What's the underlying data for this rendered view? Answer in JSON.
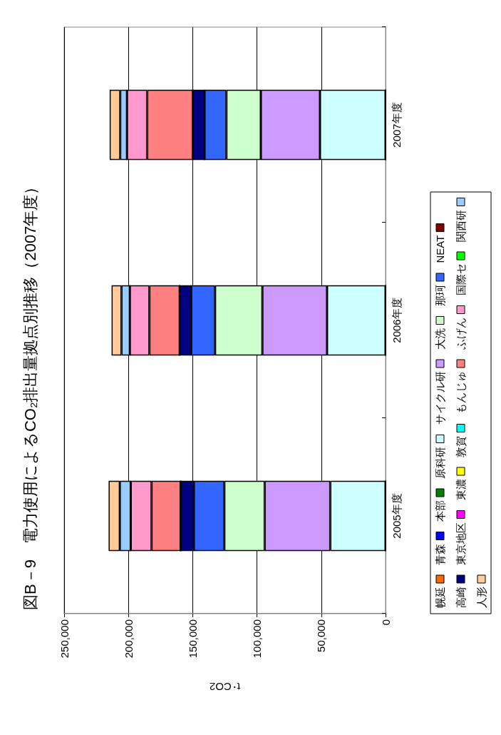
{
  "chart_data": {
    "type": "bar",
    "stacked": true,
    "title": "図B－9　電力使用によるCO₂排出量拠点別推移（2007年度）",
    "orientation": "horizontal",
    "xlabel": "t･CO2",
    "categories": [
      "2007年度",
      "2006年度",
      "2005年度"
    ],
    "xlim": [
      250000,
      0
    ],
    "xticks": [
      {
        "value": 250000,
        "label": "250,000"
      },
      {
        "value": 200000,
        "label": "200,000"
      },
      {
        "value": 150000,
        "label": "150,000"
      },
      {
        "value": 100000,
        "label": "100,000"
      },
      {
        "value": 50000,
        "label": "50,000"
      },
      0
    ],
    "grid": "x",
    "legend": "right",
    "series": [
      {
        "name": "幌延",
        "color": "#ff6600",
        "values": [
          0,
          0,
          0
        ]
      },
      {
        "name": "青森",
        "color": "#0000ff",
        "values": [
          0,
          0,
          0
        ]
      },
      {
        "name": "本部",
        "color": "#008000",
        "values": [
          0,
          0,
          0
        ]
      },
      {
        "name": "原科研",
        "color": "#ccffff",
        "values": [
          51000,
          45500,
          43000
        ]
      },
      {
        "name": "サイクル研",
        "color": "#cc99ff",
        "values": [
          46000,
          50300,
          51000
        ]
      },
      {
        "name": "大洗",
        "color": "#ccffcc",
        "values": [
          26800,
          36800,
          31400
        ]
      },
      {
        "name": "那珂",
        "color": "#3366ff",
        "values": [
          17000,
          18600,
          23700
        ]
      },
      {
        "name": "NEAT",
        "color": "#800000",
        "values": [
          0,
          0,
          0
        ]
      },
      {
        "name": "高崎",
        "color": "#000080",
        "values": [
          9100,
          8900,
          10300
        ]
      },
      {
        "name": "東京地区",
        "color": "#ff00ff",
        "values": [
          0,
          0,
          0
        ]
      },
      {
        "name": "東濃",
        "color": "#ffff00",
        "values": [
          0,
          0,
          0
        ]
      },
      {
        "name": "敦賀",
        "color": "#00ffff",
        "values": [
          0,
          0,
          0
        ]
      },
      {
        "name": "もんじゅ",
        "color": "#ff8080",
        "values": [
          35500,
          23600,
          22600
        ]
      },
      {
        "name": "ふげん",
        "color": "#ff99cc",
        "values": [
          15700,
          15200,
          16200
        ]
      },
      {
        "name": "国際セ",
        "color": "#00ff00",
        "values": [
          0,
          0,
          0
        ]
      },
      {
        "name": "関西研",
        "color": "#99ccff",
        "values": [
          5300,
          6500,
          8500
        ]
      },
      {
        "name": "人形",
        "color": "#ffcc99",
        "values": [
          8200,
          7700,
          8700
        ]
      }
    ]
  }
}
